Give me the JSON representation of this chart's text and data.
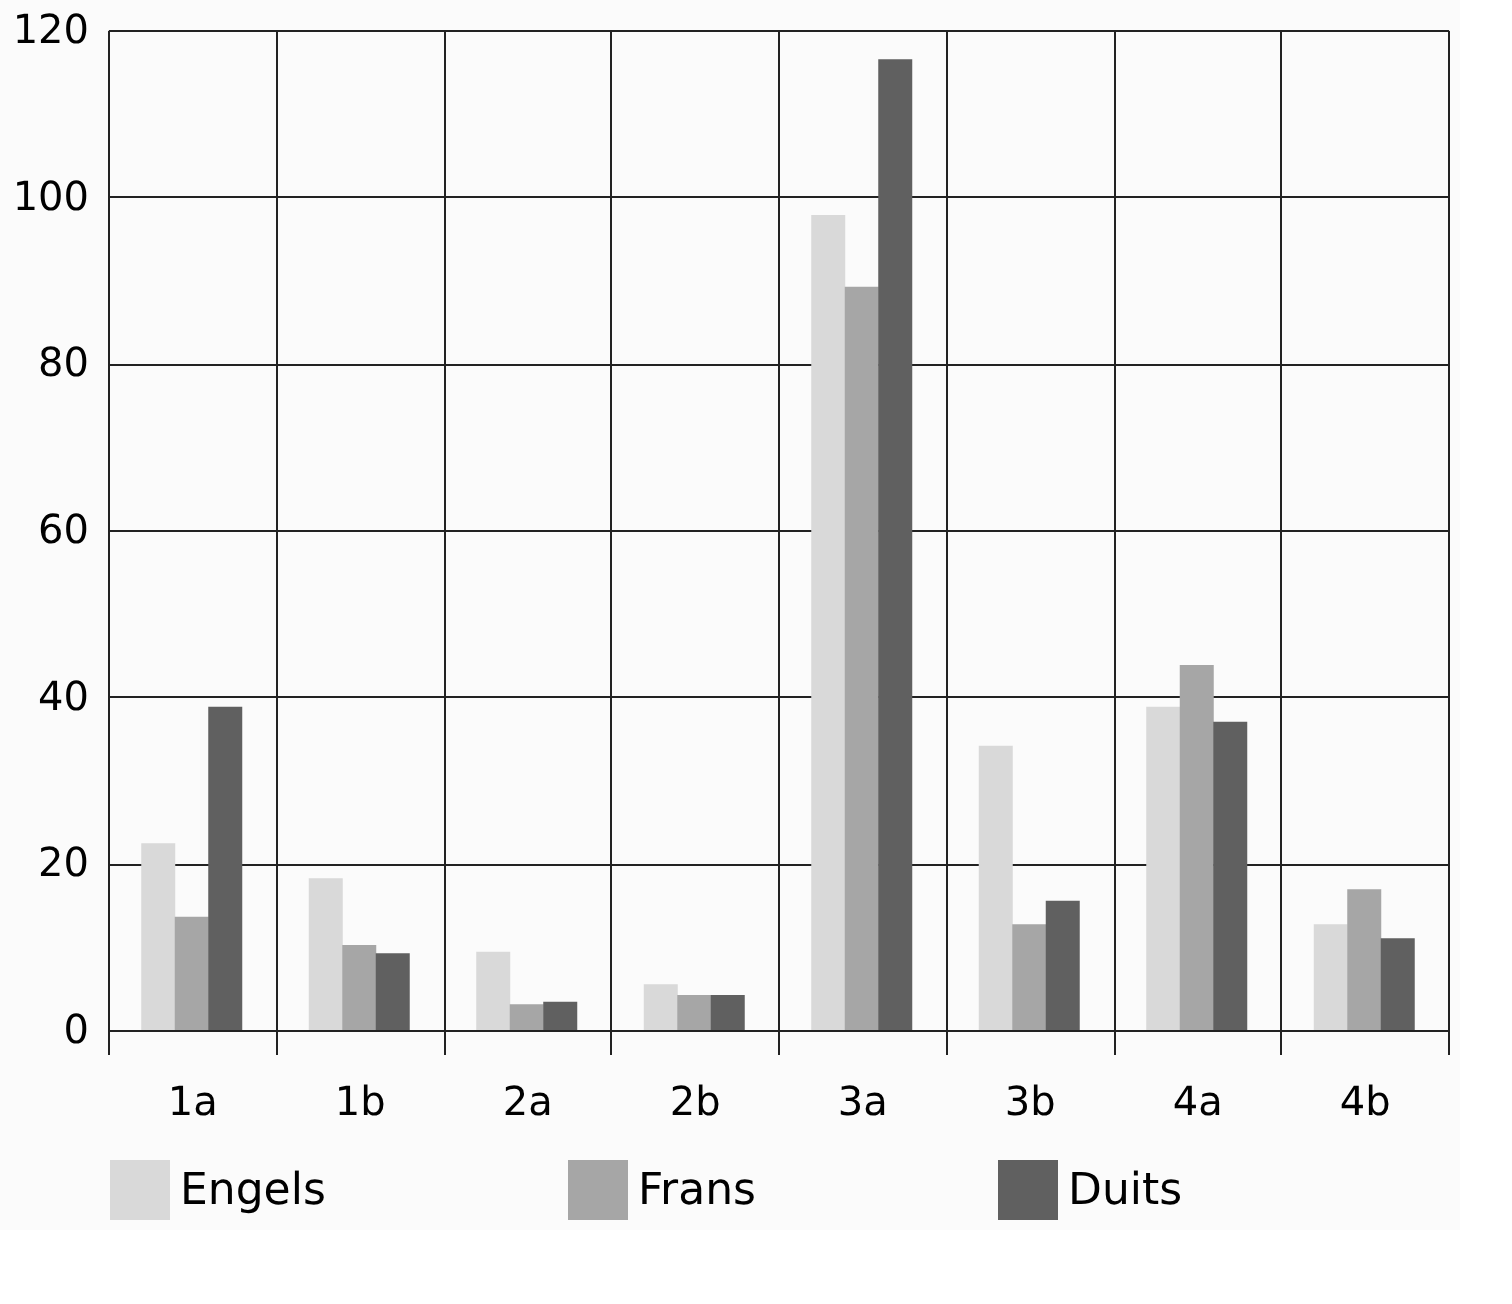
{
  "chart_data": {
    "type": "bar",
    "categories": [
      "1a",
      "1b",
      "2a",
      "2b",
      "3a",
      "3b",
      "4a",
      "4b"
    ],
    "series": [
      {
        "name": "Engels",
        "color": "#d9d9d9",
        "values": [
          22.4,
          18.2,
          9.4,
          5.5,
          97.8,
          34.1,
          38.8,
          12.7
        ]
      },
      {
        "name": "Frans",
        "color": "#a6a6a6",
        "values": [
          13.6,
          10.2,
          3.1,
          4.2,
          89.2,
          12.7,
          43.8,
          16.9
        ]
      },
      {
        "name": "Duits",
        "color": "#606060",
        "values": [
          38.8,
          9.2,
          3.4,
          4.2,
          116.5,
          15.5,
          37.0,
          11.0
        ]
      }
    ],
    "ylim": [
      0,
      120
    ],
    "yticks": [
      0,
      20,
      40,
      60,
      80,
      100,
      120
    ],
    "grid": true,
    "legend": "bottom"
  }
}
